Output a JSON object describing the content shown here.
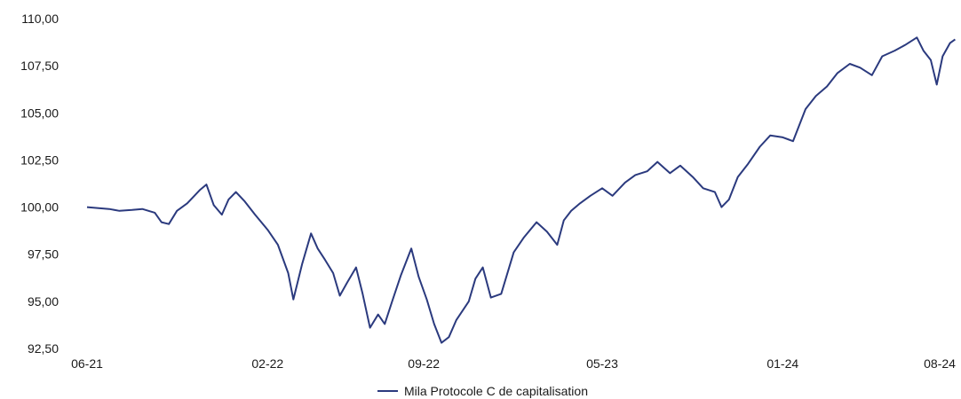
{
  "chart_data": {
    "type": "line",
    "title": "",
    "xlabel": "",
    "ylabel": "",
    "x_ticks": [
      "06-21",
      "02-22",
      "09-22",
      "05-23",
      "01-24",
      "08-24"
    ],
    "y_ticks": [
      "92,50",
      "95,00",
      "97,50",
      "100,00",
      "102,50",
      "105,00",
      "107,50",
      "110,00"
    ],
    "ylim": [
      92.5,
      110.0
    ],
    "xlim": [
      "2021-06",
      "2024-08"
    ],
    "grid": false,
    "legend_position": "bottom-center",
    "series": [
      {
        "name": "Mila Protocole C de capitalisation",
        "color": "#2b3a7e",
        "points": [
          [
            "2021-06-01",
            100.0
          ],
          [
            "2021-06-15",
            99.95
          ],
          [
            "2021-07-01",
            99.9
          ],
          [
            "2021-07-15",
            99.8
          ],
          [
            "2021-08-01",
            99.85
          ],
          [
            "2021-08-15",
            99.9
          ],
          [
            "2021-09-01",
            99.7
          ],
          [
            "2021-09-10",
            99.2
          ],
          [
            "2021-09-20",
            99.1
          ],
          [
            "2021-10-01",
            99.8
          ],
          [
            "2021-10-15",
            100.2
          ],
          [
            "2021-11-01",
            100.9
          ],
          [
            "2021-11-10",
            101.2
          ],
          [
            "2021-11-20",
            100.1
          ],
          [
            "2021-12-01",
            99.6
          ],
          [
            "2021-12-10",
            100.4
          ],
          [
            "2021-12-20",
            100.8
          ],
          [
            "2022-01-01",
            100.3
          ],
          [
            "2022-01-15",
            99.6
          ],
          [
            "2022-02-01",
            98.8
          ],
          [
            "2022-02-15",
            98.0
          ],
          [
            "2022-03-01",
            96.5
          ],
          [
            "2022-03-08",
            95.1
          ],
          [
            "2022-03-20",
            97.0
          ],
          [
            "2022-04-01",
            98.6
          ],
          [
            "2022-04-10",
            97.8
          ],
          [
            "2022-04-20",
            97.2
          ],
          [
            "2022-05-01",
            96.5
          ],
          [
            "2022-05-10",
            95.3
          ],
          [
            "2022-05-20",
            96.0
          ],
          [
            "2022-06-01",
            96.8
          ],
          [
            "2022-06-10",
            95.4
          ],
          [
            "2022-06-20",
            93.6
          ],
          [
            "2022-07-01",
            94.3
          ],
          [
            "2022-07-10",
            93.8
          ],
          [
            "2022-07-20",
            95.0
          ],
          [
            "2022-08-01",
            96.4
          ],
          [
            "2022-08-15",
            97.8
          ],
          [
            "2022-08-25",
            96.3
          ],
          [
            "2022-09-05",
            95.1
          ],
          [
            "2022-09-15",
            93.8
          ],
          [
            "2022-09-25",
            92.8
          ],
          [
            "2022-10-05",
            93.1
          ],
          [
            "2022-10-15",
            94.0
          ],
          [
            "2022-11-01",
            95.0
          ],
          [
            "2022-11-10",
            96.2
          ],
          [
            "2022-11-20",
            96.8
          ],
          [
            "2022-12-01",
            95.2
          ],
          [
            "2022-12-15",
            95.4
          ],
          [
            "2023-01-01",
            97.6
          ],
          [
            "2023-01-15",
            98.4
          ],
          [
            "2023-02-01",
            99.2
          ],
          [
            "2023-02-15",
            98.7
          ],
          [
            "2023-03-01",
            98.0
          ],
          [
            "2023-03-10",
            99.3
          ],
          [
            "2023-03-20",
            99.8
          ],
          [
            "2023-04-01",
            100.2
          ],
          [
            "2023-04-15",
            100.6
          ],
          [
            "2023-05-01",
            101.0
          ],
          [
            "2023-05-15",
            100.6
          ],
          [
            "2023-06-01",
            101.3
          ],
          [
            "2023-06-15",
            101.7
          ],
          [
            "2023-07-01",
            101.9
          ],
          [
            "2023-07-15",
            102.4
          ],
          [
            "2023-08-01",
            101.8
          ],
          [
            "2023-08-15",
            102.2
          ],
          [
            "2023-09-01",
            101.6
          ],
          [
            "2023-09-15",
            101.0
          ],
          [
            "2023-10-01",
            100.8
          ],
          [
            "2023-10-10",
            100.0
          ],
          [
            "2023-10-20",
            100.4
          ],
          [
            "2023-11-01",
            101.6
          ],
          [
            "2023-11-15",
            102.3
          ],
          [
            "2023-12-01",
            103.2
          ],
          [
            "2023-12-15",
            103.8
          ],
          [
            "2024-01-01",
            103.7
          ],
          [
            "2024-01-15",
            103.5
          ],
          [
            "2024-02-01",
            105.2
          ],
          [
            "2024-02-15",
            105.9
          ],
          [
            "2024-03-01",
            106.4
          ],
          [
            "2024-03-15",
            107.1
          ],
          [
            "2024-04-01",
            107.6
          ],
          [
            "2024-04-15",
            107.4
          ],
          [
            "2024-05-01",
            107.0
          ],
          [
            "2024-05-15",
            108.0
          ],
          [
            "2024-06-01",
            108.3
          ],
          [
            "2024-06-15",
            108.6
          ],
          [
            "2024-07-01",
            109.0
          ],
          [
            "2024-07-10",
            108.3
          ],
          [
            "2024-07-20",
            107.8
          ],
          [
            "2024-07-28",
            106.5
          ],
          [
            "2024-08-05",
            108.0
          ],
          [
            "2024-08-15",
            108.7
          ],
          [
            "2024-08-22",
            108.9
          ]
        ]
      }
    ]
  }
}
